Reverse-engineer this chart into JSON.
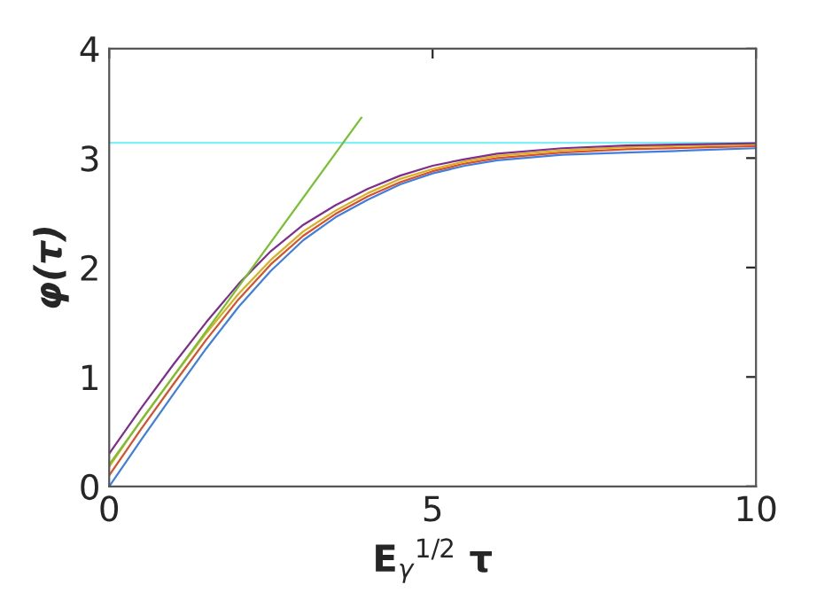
{
  "chart_data": {
    "type": "line",
    "xlabel": "E$_{γ}$$^{1/2}$ τ",
    "ylabel": "φ(τ)",
    "xlim": [
      0,
      10
    ],
    "ylim": [
      0,
      4
    ],
    "xticks": [
      0,
      5,
      10
    ],
    "yticks": [
      0,
      1,
      2,
      3,
      4
    ],
    "grid": false,
    "legend": false,
    "marker": "none",
    "line_style": "solid",
    "x": [
      0,
      0.5,
      1,
      1.5,
      2,
      2.5,
      3,
      3.5,
      4,
      4.5,
      5,
      5.5,
      6,
      7,
      8,
      9,
      10
    ],
    "series": [
      {
        "color": "#3f7fe0",
        "values": [
          0,
          0.43,
          0.85,
          1.26,
          1.64,
          1.97,
          2.25,
          2.46,
          2.62,
          2.76,
          2.86,
          2.93,
          2.98,
          3.03,
          3.05,
          3.07,
          3.09
        ]
      },
      {
        "color": "#d9502a",
        "values": [
          0.1,
          0.53,
          0.94,
          1.34,
          1.71,
          2.03,
          2.29,
          2.49,
          2.65,
          2.78,
          2.88,
          2.95,
          3.0,
          3.05,
          3.08,
          3.095,
          3.11
        ]
      },
      {
        "color": "#d9b020",
        "values": [
          0.18,
          0.61,
          1.01,
          1.4,
          1.76,
          2.07,
          2.33,
          2.52,
          2.68,
          2.81,
          2.9,
          2.97,
          3.02,
          3.07,
          3.1,
          3.115,
          3.125
        ]
      },
      {
        "color": "#7e2f8e",
        "values": [
          0.3,
          0.72,
          1.12,
          1.5,
          1.85,
          2.15,
          2.39,
          2.57,
          2.72,
          2.84,
          2.93,
          2.99,
          3.04,
          3.09,
          3.115,
          3.125,
          3.135
        ]
      },
      {
        "color": "#77c030",
        "x": [
          0,
          3.9
        ],
        "values": [
          0.2,
          3.37
        ]
      }
    ],
    "ref_lines": [
      {
        "axis": "y",
        "value": 3.14,
        "color": "#7ff0f5",
        "line_style": "solid"
      }
    ]
  }
}
